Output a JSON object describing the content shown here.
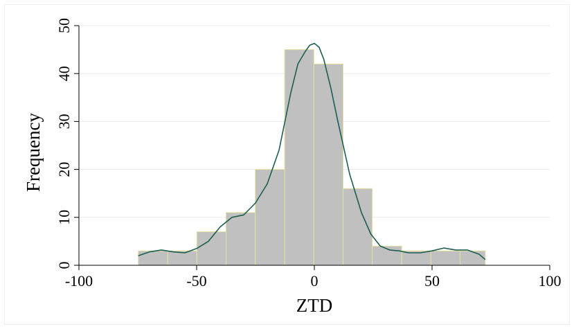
{
  "chart_data": {
    "type": "bar",
    "subtype": "histogram-with-kernel-density",
    "title": "",
    "xlabel": "ZTD",
    "ylabel": "Frequency",
    "xlim": [
      -100,
      100
    ],
    "ylim": [
      0,
      50
    ],
    "xticks": [
      -100,
      -50,
      0,
      50,
      100
    ],
    "yticks": [
      0,
      10,
      20,
      30,
      40,
      50
    ],
    "grid": "horizontal",
    "legend": "none",
    "bar_color": "#c0c0c0",
    "bar_edge_color": "#e6e0a0",
    "density_color": "#1b5e4f",
    "bins": [
      {
        "x0": -74.8,
        "x1": -62.3,
        "count": 3
      },
      {
        "x0": -62.3,
        "x1": -49.9,
        "count": 3
      },
      {
        "x0": -49.9,
        "x1": -37.5,
        "count": 7
      },
      {
        "x0": -37.5,
        "x1": -25.1,
        "count": 11
      },
      {
        "x0": -25.1,
        "x1": -12.6,
        "count": 20
      },
      {
        "x0": -12.6,
        "x1": -0.2,
        "count": 45
      },
      {
        "x0": -0.2,
        "x1": 12.2,
        "count": 42
      },
      {
        "x0": 12.2,
        "x1": 24.6,
        "count": 16
      },
      {
        "x0": 24.6,
        "x1": 37.1,
        "count": 4
      },
      {
        "x0": 37.1,
        "x1": 49.5,
        "count": 3
      },
      {
        "x0": 49.5,
        "x1": 61.9,
        "count": 3
      },
      {
        "x0": 61.9,
        "x1": 72.6,
        "count": 3
      }
    ],
    "density_curve": {
      "x": [
        -74.8,
        -70,
        -65,
        -60,
        -55,
        -50,
        -45,
        -40,
        -35,
        -30,
        -25,
        -20,
        -15,
        -10,
        -7,
        -4,
        -2,
        0,
        2,
        4,
        7,
        10,
        15,
        20,
        24,
        28,
        32,
        36,
        40,
        45,
        50,
        55,
        60,
        65,
        70,
        72.6
      ],
      "y": [
        2.0,
        2.8,
        3.2,
        2.8,
        2.6,
        3.5,
        5.0,
        8.0,
        10.0,
        10.5,
        13.0,
        17.0,
        24.0,
        36.0,
        42.0,
        44.5,
        45.9,
        46.3,
        45.5,
        43.0,
        37.0,
        30.0,
        19.0,
        11.0,
        6.5,
        4.0,
        3.2,
        3.0,
        2.6,
        2.6,
        3.0,
        3.6,
        3.2,
        3.2,
        2.3,
        1.2
      ]
    }
  }
}
